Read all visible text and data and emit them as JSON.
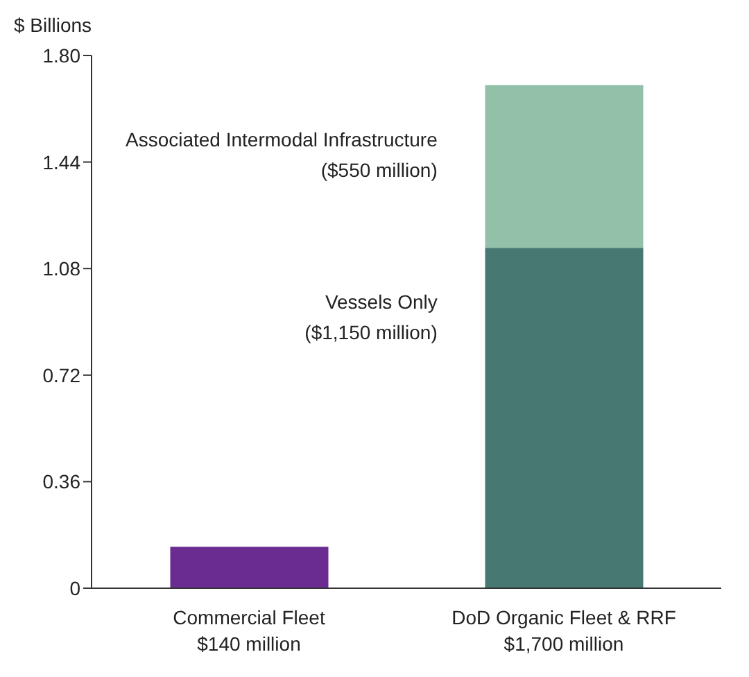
{
  "chart_data": {
    "type": "bar",
    "stacked": true,
    "ylabel": "$ Billions",
    "categories": [
      "Commercial Fleet",
      "DoD Organic Fleet & RRF"
    ],
    "totals": [
      "$140 million",
      "$1,700 million"
    ],
    "series": [
      {
        "name": "Vessels Only",
        "colors": [
          "#6a2c91",
          "#477872"
        ],
        "values": [
          0.14,
          1.15
        ]
      },
      {
        "name": "Associated Intermodal Infrastructure",
        "color": "#93c0a8",
        "values": [
          null,
          0.55
        ]
      }
    ],
    "annotations": [
      "($1,150 million)",
      "($550 million)"
    ],
    "ylim": [
      0,
      1.8
    ],
    "yticks": [
      0,
      0.36,
      0.72,
      1.08,
      1.44,
      {
        "value": 1.8,
        "label": "1.80"
      }
    ],
    "grid": false,
    "legend": false
  }
}
